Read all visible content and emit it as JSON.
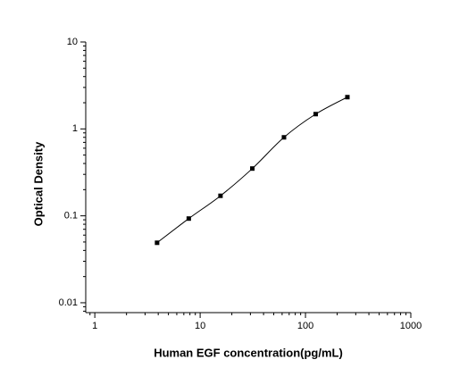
{
  "chart_data": {
    "type": "scatter",
    "x_label": "Human EGF concentration(pg/mL)",
    "y_label": "Optical Density",
    "x": [
      3.9,
      7.8,
      15.6,
      31.3,
      62.5,
      125,
      250
    ],
    "series": [
      {
        "color": "#000000",
        "values": [
          0.049,
          0.093,
          0.17,
          0.35,
          0.8,
          1.48,
          2.32
        ]
      }
    ],
    "xlim": [
      0.82,
      1000
    ],
    "ylim": [
      0.0077,
      10
    ],
    "xticks": [
      1,
      10,
      100,
      1000
    ],
    "yticks": [
      0.01,
      0.1,
      1,
      10
    ],
    "xscale": "log",
    "yscale": "log",
    "fit_line": true,
    "grid": false
  }
}
